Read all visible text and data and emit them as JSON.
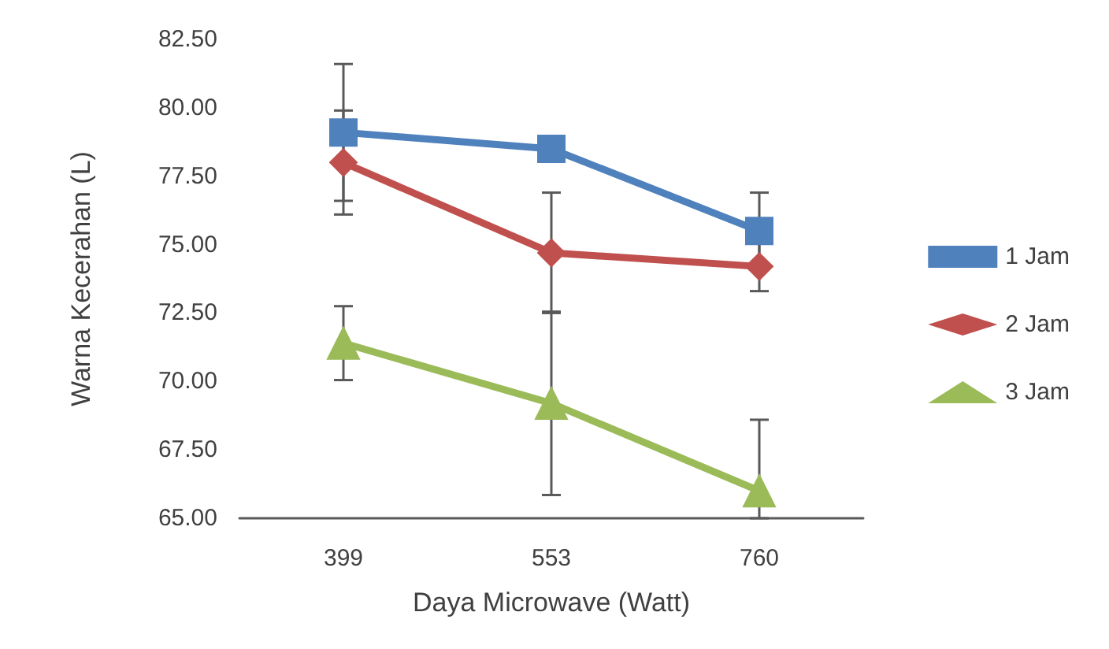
{
  "chart_data": {
    "type": "line",
    "xlabel": "Daya Microwave (Watt)",
    "ylabel": "Warna Kecerahan (L)",
    "categories": [
      "399",
      "553",
      "760"
    ],
    "series": [
      {
        "name": "1 Jam",
        "color": "#4f81bd",
        "marker": "square",
        "values": [
          79.1,
          78.5,
          75.5
        ],
        "errors": [
          2.5,
          null,
          1.4
        ]
      },
      {
        "name": "2 Jam",
        "color": "#c0504d",
        "marker": "diamond",
        "values": [
          78.0,
          74.7,
          74.2
        ],
        "errors": [
          1.9,
          2.2,
          0.9
        ]
      },
      {
        "name": "3 Jam",
        "color": "#9bbb59",
        "marker": "triangle",
        "values": [
          71.4,
          69.2,
          66.0
        ],
        "errors": [
          1.35,
          3.35,
          [
            65,
            68.6
          ]
        ]
      }
    ],
    "ylim": [
      65,
      82.5
    ],
    "yticks": [
      {
        "value": 65,
        "label": "65.00"
      },
      {
        "value": 67.5,
        "label": "67.50"
      },
      {
        "value": 70,
        "label": "70.00"
      },
      {
        "value": 72.5,
        "label": "72.50"
      },
      {
        "value": 75,
        "label": "75.00"
      },
      {
        "value": 77.5,
        "label": "77.50"
      },
      {
        "value": 80,
        "label": "80.00"
      },
      {
        "value": 82.5,
        "label": "82.50"
      }
    ],
    "grid": false,
    "legend": "right"
  }
}
